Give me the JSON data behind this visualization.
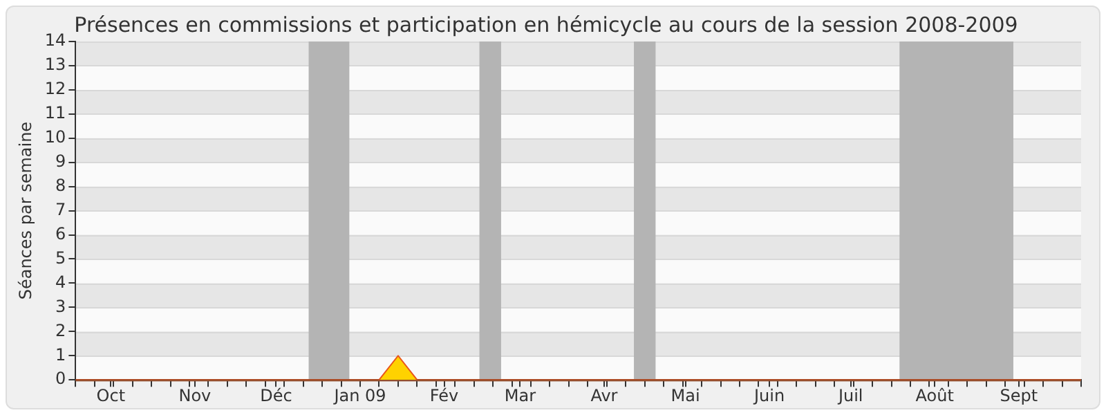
{
  "chart_data": {
    "type": "area",
    "title": "Présences en commissions et participation en hémicycle au cours de la session 2008-2009",
    "ylabel": "Séances par semaine",
    "x": [
      "2008-09-18",
      "2009-01-08",
      "2009-01-15",
      "2009-01-22",
      "2009-09-24"
    ],
    "series": [
      {
        "color": "#ffd200",
        "values": [
          0,
          0,
          1,
          0,
          0
        ]
      }
    ],
    "xlim": [
      "2008-09-18",
      "2009-09-24"
    ],
    "xticks": [
      {
        "value": "2008-09-18",
        "label": null
      },
      {
        "value": "2008-09-25",
        "label": null
      },
      {
        "value": "2008-10-01",
        "label": "Oct"
      },
      {
        "value": "2008-10-02",
        "label": null
      },
      {
        "value": "2008-10-09",
        "label": null
      },
      {
        "value": "2008-10-16",
        "label": null
      },
      {
        "value": "2008-10-23",
        "label": null
      },
      {
        "value": "2008-10-30",
        "label": null
      },
      {
        "value": "2008-11-01",
        "label": "Nov"
      },
      {
        "value": "2008-11-06",
        "label": null
      },
      {
        "value": "2008-11-13",
        "label": null
      },
      {
        "value": "2008-11-20",
        "label": null
      },
      {
        "value": "2008-11-27",
        "label": null
      },
      {
        "value": "2008-12-01",
        "label": "Déc"
      },
      {
        "value": "2008-12-04",
        "label": null
      },
      {
        "value": "2008-12-11",
        "label": null
      },
      {
        "value": "2008-12-18",
        "label": null
      },
      {
        "value": "2008-12-25",
        "label": null
      },
      {
        "value": "2009-01-01",
        "label": "Jan 09"
      },
      {
        "value": "2009-01-08",
        "label": null
      },
      {
        "value": "2009-01-15",
        "label": null
      },
      {
        "value": "2009-01-22",
        "label": null
      },
      {
        "value": "2009-01-29",
        "label": null
      },
      {
        "value": "2009-02-01",
        "label": "Fév"
      },
      {
        "value": "2009-02-05",
        "label": null
      },
      {
        "value": "2009-02-12",
        "label": null
      },
      {
        "value": "2009-02-19",
        "label": null
      },
      {
        "value": "2009-02-26",
        "label": null
      },
      {
        "value": "2009-03-01",
        "label": "Mar"
      },
      {
        "value": "2009-03-05",
        "label": null
      },
      {
        "value": "2009-03-12",
        "label": null
      },
      {
        "value": "2009-03-19",
        "label": null
      },
      {
        "value": "2009-03-26",
        "label": null
      },
      {
        "value": "2009-04-01",
        "label": "Avr"
      },
      {
        "value": "2009-04-02",
        "label": null
      },
      {
        "value": "2009-04-09",
        "label": null
      },
      {
        "value": "2009-04-16",
        "label": null
      },
      {
        "value": "2009-04-23",
        "label": null
      },
      {
        "value": "2009-04-30",
        "label": null
      },
      {
        "value": "2009-05-01",
        "label": "Mai"
      },
      {
        "value": "2009-05-07",
        "label": null
      },
      {
        "value": "2009-05-14",
        "label": null
      },
      {
        "value": "2009-05-21",
        "label": null
      },
      {
        "value": "2009-05-28",
        "label": null
      },
      {
        "value": "2009-06-01",
        "label": "Juin"
      },
      {
        "value": "2009-06-04",
        "label": null
      },
      {
        "value": "2009-06-11",
        "label": null
      },
      {
        "value": "2009-06-18",
        "label": null
      },
      {
        "value": "2009-06-25",
        "label": null
      },
      {
        "value": "2009-07-01",
        "label": "Juil"
      },
      {
        "value": "2009-07-02",
        "label": null
      },
      {
        "value": "2009-07-09",
        "label": null
      },
      {
        "value": "2009-07-16",
        "label": null
      },
      {
        "value": "2009-07-23",
        "label": null
      },
      {
        "value": "2009-07-30",
        "label": null
      },
      {
        "value": "2009-08-01",
        "label": "Août"
      },
      {
        "value": "2009-08-06",
        "label": null
      },
      {
        "value": "2009-08-13",
        "label": null
      },
      {
        "value": "2009-08-20",
        "label": null
      },
      {
        "value": "2009-08-27",
        "label": null
      },
      {
        "value": "2009-09-01",
        "label": "Sept"
      },
      {
        "value": "2009-09-03",
        "label": null
      },
      {
        "value": "2009-09-10",
        "label": null
      },
      {
        "value": "2009-09-17",
        "label": null
      },
      {
        "value": "2009-09-24",
        "label": null
      }
    ],
    "ylim": [
      0,
      14
    ],
    "yticks": [
      0,
      1,
      2,
      3,
      4,
      5,
      6,
      7,
      8,
      9,
      10,
      11,
      12,
      13,
      14
    ],
    "bands": [
      {
        "axis": "x",
        "from": "2008-12-13",
        "to": "2008-12-28",
        "color": "#b4b4b4"
      },
      {
        "axis": "x",
        "from": "2009-02-14",
        "to": "2009-02-22",
        "color": "#b4b4b4"
      },
      {
        "axis": "x",
        "from": "2009-04-12",
        "to": "2009-04-20",
        "color": "#b4b4b4"
      },
      {
        "axis": "x",
        "from": "2009-07-19",
        "to": "2009-08-30",
        "color": "#b4b4b4"
      }
    ],
    "grid": "y",
    "marker": "none"
  }
}
